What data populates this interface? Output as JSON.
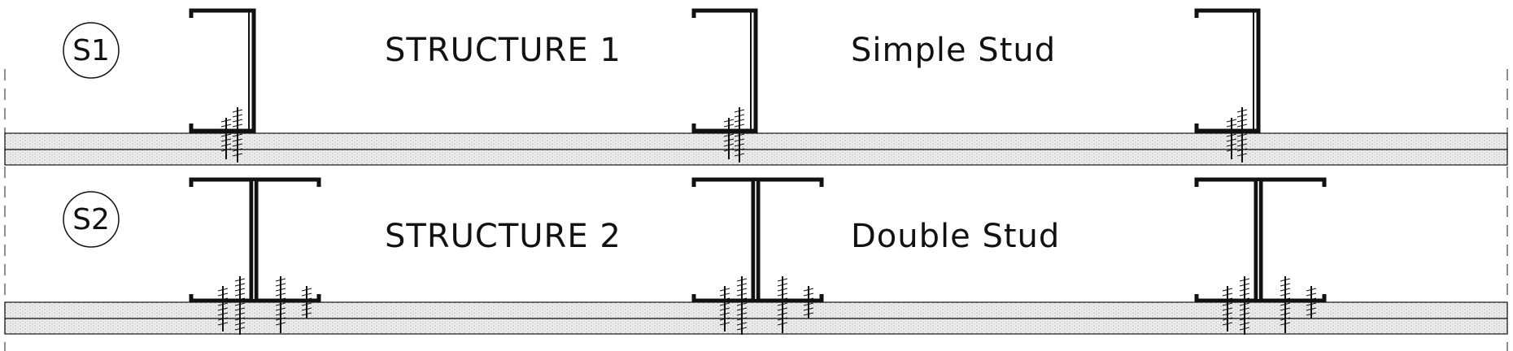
{
  "rows": [
    {
      "marker": "S1",
      "title": "STRUCTURE 1",
      "subtitle": "Simple Stud",
      "stud_type": "single",
      "stud_count": 3
    },
    {
      "marker": "S2",
      "title": "STRUCTURE 2",
      "subtitle": "Double Stud",
      "stud_type": "double",
      "stud_count": 3
    }
  ],
  "colors": {
    "line": "#111111",
    "board_fill": "#e6e6e6",
    "dash": "#444444"
  }
}
